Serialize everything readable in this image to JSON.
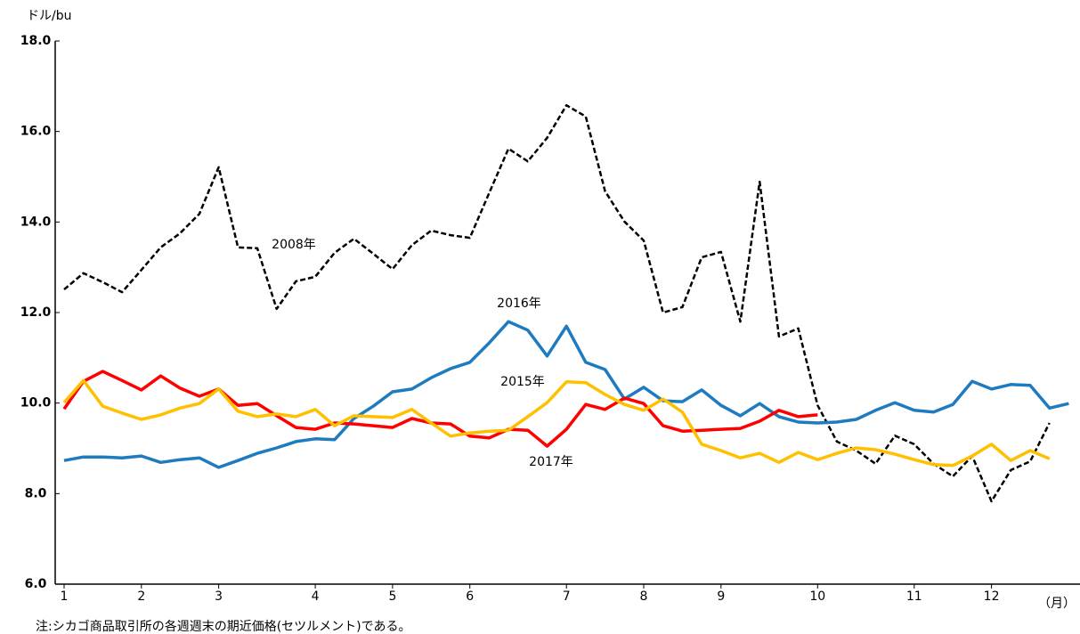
{
  "chart_data": {
    "type": "line",
    "y_axis_label": "ドル/bu",
    "x_axis_label": "（月）",
    "note": "注:シカゴ商品取引所の各週週末の期近価格(セツルメント)である。",
    "categories": [
      "1",
      null,
      null,
      null,
      "2",
      null,
      null,
      null,
      "3",
      null,
      null,
      null,
      null,
      "4",
      null,
      null,
      null,
      "5",
      null,
      null,
      null,
      "6",
      null,
      null,
      null,
      null,
      "7",
      null,
      null,
      null,
      "8",
      null,
      null,
      null,
      "9",
      null,
      null,
      null,
      null,
      "10",
      null,
      null,
      null,
      null,
      "11",
      null,
      null,
      null,
      "12",
      null,
      null,
      null,
      null
    ],
    "ylim": [
      6,
      18
    ],
    "yticks": [
      {
        "value": 6,
        "label": "6.0"
      },
      {
        "value": 8,
        "label": "8.0"
      },
      {
        "value": 10,
        "label": "10.0"
      },
      {
        "value": 12,
        "label": "12.0"
      },
      {
        "value": 14,
        "label": "14.0"
      },
      {
        "value": 16,
        "label": "16.0"
      },
      {
        "value": 18,
        "label": "18.0"
      }
    ],
    "grid": false,
    "series": [
      {
        "name": "2008年",
        "color": "#000000",
        "dashed": true,
        "values": [
          12.51,
          12.87,
          12.67,
          12.45,
          12.94,
          13.44,
          13.75,
          14.18,
          15.21,
          13.44,
          13.42,
          12.08,
          12.69,
          12.79,
          13.32,
          13.63,
          13.3,
          12.96,
          13.49,
          13.81,
          13.71,
          13.65,
          14.64,
          15.62,
          15.34,
          15.86,
          16.58,
          16.33,
          14.68,
          14.01,
          13.59,
          12.0,
          12.12,
          13.22,
          13.34,
          11.8,
          14.89,
          11.47,
          11.65,
          9.95,
          9.15,
          8.95,
          8.66,
          9.28,
          9.09,
          8.66,
          8.38,
          8.83,
          7.83,
          8.52,
          8.71,
          9.56,
          null
        ]
      },
      {
        "name": "2016年",
        "color": "#1f7bbf",
        "values": [
          8.73,
          8.81,
          8.81,
          8.79,
          8.83,
          8.69,
          8.75,
          8.79,
          8.58,
          8.73,
          8.89,
          9.01,
          9.15,
          9.21,
          9.19,
          9.66,
          9.93,
          10.25,
          10.31,
          10.56,
          10.76,
          10.9,
          11.33,
          11.8,
          11.61,
          11.04,
          11.7,
          10.9,
          10.74,
          10.09,
          10.35,
          10.05,
          10.03,
          10.29,
          9.95,
          9.72,
          9.99,
          9.7,
          9.58,
          9.56,
          9.58,
          9.64,
          9.84,
          10.01,
          9.84,
          9.8,
          9.97,
          10.48,
          10.31,
          10.41,
          10.39,
          9.89,
          9.99
        ]
      },
      {
        "name": "2015年",
        "color": "#ff0000",
        "values": [
          9.87,
          10.48,
          10.7,
          10.5,
          10.29,
          10.6,
          10.33,
          10.15,
          10.31,
          9.95,
          9.99,
          9.72,
          9.46,
          9.42,
          9.56,
          9.54,
          9.5,
          9.46,
          9.66,
          9.56,
          9.54,
          9.27,
          9.23,
          9.42,
          9.4,
          9.05,
          9.42,
          9.97,
          9.86,
          10.11,
          9.99,
          9.5,
          9.38,
          9.4,
          9.42,
          9.44,
          9.6,
          9.84,
          9.7,
          9.74,
          null,
          null,
          null,
          null,
          null,
          null,
          null,
          null,
          null,
          null,
          null,
          null,
          null
        ]
      },
      {
        "name": "2017年",
        "color": "#ffc000",
        "values": [
          10.01,
          10.5,
          9.93,
          9.78,
          9.64,
          9.74,
          9.89,
          9.99,
          10.31,
          9.82,
          9.7,
          9.76,
          9.7,
          9.86,
          9.5,
          9.72,
          9.7,
          9.68,
          9.86,
          9.56,
          9.27,
          9.34,
          9.38,
          9.4,
          9.7,
          10.01,
          10.47,
          10.45,
          10.19,
          9.97,
          9.84,
          10.09,
          9.8,
          9.09,
          8.95,
          8.79,
          8.89,
          8.69,
          8.91,
          8.75,
          8.89,
          9.01,
          8.97,
          8.87,
          8.75,
          8.64,
          8.62,
          8.83,
          9.09,
          8.73,
          8.95,
          8.77,
          null
        ]
      }
    ]
  }
}
